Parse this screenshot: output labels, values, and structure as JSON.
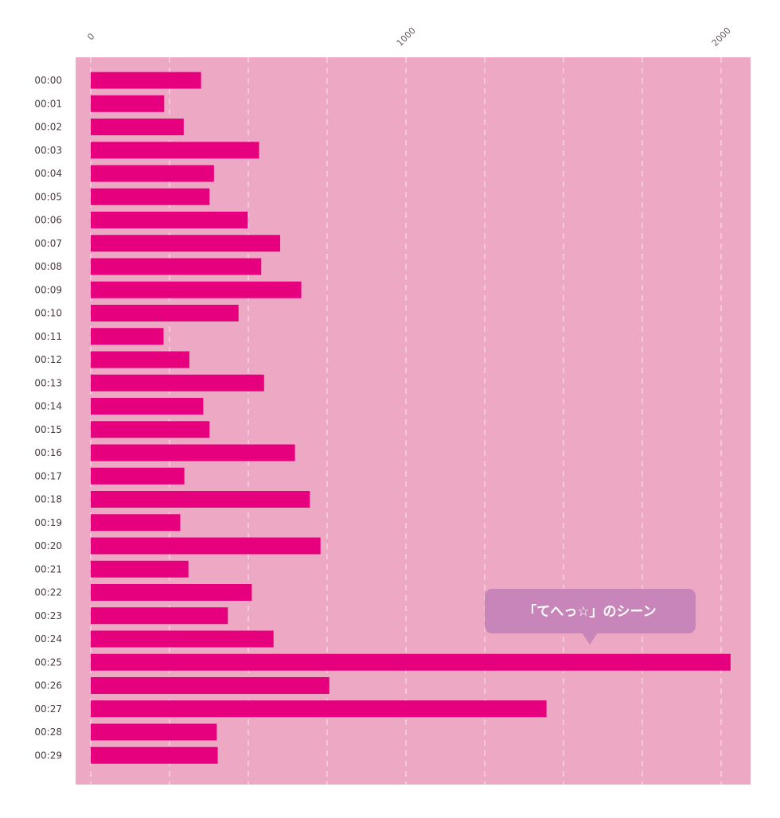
{
  "colors": {
    "plot_background": "#eda8c4",
    "bar": "#e6007e",
    "grid": "#ffffff",
    "callout": "#c785b9",
    "callout_text": "#ffffff"
  },
  "chart_data": {
    "type": "bar",
    "orientation": "horizontal",
    "title": "",
    "xlabel": "",
    "ylabel": "",
    "xlim": [
      0,
      2060
    ],
    "x_ticks": [
      0,
      1000,
      2000
    ],
    "grid": "vertical dashed",
    "categories": [
      "00:00",
      "00:01",
      "00:02",
      "00:03",
      "00:04",
      "00:05",
      "00:06",
      "00:07",
      "00:08",
      "00:09",
      "00:10",
      "00:11",
      "00:12",
      "00:13",
      "00:14",
      "00:15",
      "00:16",
      "00:17",
      "00:18",
      "00:19",
      "00:20",
      "00:21",
      "00:22",
      "00:23",
      "00:24",
      "00:25",
      "00:26",
      "00:27",
      "00:28",
      "00:29"
    ],
    "values": [
      350,
      233,
      295,
      534,
      391,
      377,
      498,
      601,
      541,
      668,
      469,
      231,
      313,
      550,
      357,
      377,
      648,
      297,
      695,
      284,
      729,
      310,
      511,
      435,
      580,
      2030,
      757,
      1446,
      400,
      403
    ],
    "annotation": {
      "text": "「てへっ☆」のシーン",
      "category": "00:25"
    }
  }
}
